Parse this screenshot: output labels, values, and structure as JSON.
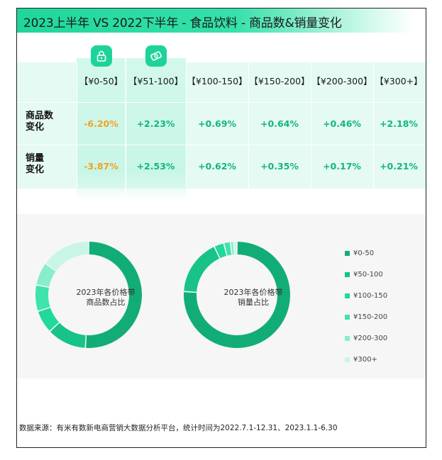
{
  "title": "2023上半年 VS 2022下半年 - 食品饮料 - 商品数&销量变化",
  "table": {
    "price_bands": [
      "【¥0-50】",
      "【¥51-100】",
      "【¥100-150】",
      "【¥150-200】",
      "【¥200-300】",
      "【¥300+】"
    ],
    "rows": [
      {
        "label": "商品数变化",
        "label_lines": [
          "商品数",
          "变化"
        ],
        "values": [
          "-6.20%",
          "+2.23%",
          "+0.69%",
          "+0.64%",
          "+0.46%",
          "+2.18%"
        ]
      },
      {
        "label": "销量变化",
        "label_lines": [
          "销量",
          "变化"
        ],
        "values": [
          "-3.87%",
          "+2.53%",
          "+0.62%",
          "+0.35%",
          "+0.17%",
          "+0.21%"
        ]
      }
    ],
    "highlight_icons": [
      "lock-icon",
      "money-icon"
    ]
  },
  "chart_data": [
    {
      "type": "pie",
      "title": "2023年各价格带商品数占比",
      "title_lines": [
        "2023年各价格带",
        "商品数占比"
      ],
      "categories": [
        "¥0-50",
        "¥50-100",
        "¥100-150",
        "¥150-200",
        "¥200-300",
        "¥300+"
      ],
      "values": [
        51,
        12,
        7,
        8,
        7,
        15
      ]
    },
    {
      "type": "pie",
      "title": "2023年各价格带销量占比",
      "title_lines": [
        "2023年各价格带",
        "销量占比"
      ],
      "categories": [
        "¥0-50",
        "¥50-100",
        "¥100-150",
        "¥150-200",
        "¥200-300",
        "¥300+"
      ],
      "values": [
        76,
        17,
        3,
        2,
        1,
        1
      ]
    }
  ],
  "legend": {
    "items": [
      "¥0-50",
      "¥50-100",
      "¥100-150",
      "¥150-200",
      "¥200-300",
      "¥300+"
    ],
    "colors": [
      "#12ad76",
      "#17c387",
      "#20d99b",
      "#3ee4ac",
      "#86eecc",
      "#c8f6e6"
    ]
  },
  "colors": {
    "accent": "#1fd69b",
    "negative": "#f4a01f",
    "positive": "#14b57f"
  },
  "source": "数据来源：有米有数新电商营销大数据分析平台，统计时间为2022.7.1-12.31、2023.1.1-6.30"
}
